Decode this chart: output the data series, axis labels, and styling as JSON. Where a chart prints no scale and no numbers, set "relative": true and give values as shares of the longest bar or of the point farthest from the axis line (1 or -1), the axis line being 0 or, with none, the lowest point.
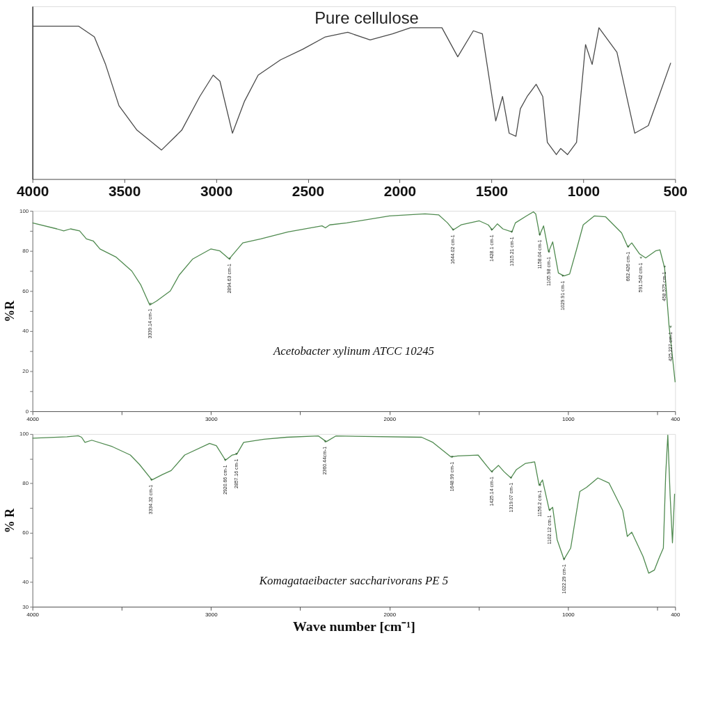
{
  "chart_data": [
    {
      "type": "line",
      "title": "Pure cellulose",
      "relative": true,
      "tick_labels": "x",
      "grid": false,
      "xlim": [
        4000,
        500
      ],
      "xticks": [
        4000,
        3500,
        3000,
        2500,
        2000,
        1500,
        1000,
        500
      ],
      "x": [
        4000,
        3748,
        3663,
        3602,
        3529,
        3431,
        3297,
        3187,
        3089,
        3016,
        2979,
        2911,
        2845,
        2771,
        2649,
        2527,
        2405,
        2283,
        2161,
        2039,
        1941,
        1770,
        1684,
        1599,
        1550,
        1477,
        1440,
        1404,
        1367,
        1343,
        1306,
        1257,
        1221,
        1196,
        1147,
        1123,
        1086,
        1037,
        988,
        952,
        915,
        817,
        720,
        646,
        598,
        524
      ],
      "series": [
        {
          "color": "#4a4a4a",
          "values": [
            1,
            1,
            0.93,
            0.75,
            0.48,
            0.32,
            0.19,
            0.32,
            0.54,
            0.68,
            0.64,
            0.3,
            0.51,
            0.68,
            0.78,
            0.85,
            0.93,
            0.96,
            0.91,
            0.95,
            0.99,
            0.99,
            0.8,
            0.97,
            0.95,
            0.38,
            0.54,
            0.3,
            0.28,
            0.46,
            0.54,
            0.62,
            0.54,
            0.24,
            0.16,
            0.2,
            0.16,
            0.24,
            0.88,
            0.75,
            0.99,
            0.83,
            0.3,
            0.35,
            0.51,
            0.76
          ]
        }
      ]
    },
    {
      "type": "line",
      "ylabel": "%R",
      "grid": false,
      "xlim": [
        4000,
        400
      ],
      "ylim": [
        0,
        100
      ],
      "xticks": [
        4000,
        {
          "value": 3500,
          "label": null
        },
        3000,
        {
          "value": 2500,
          "label": null
        },
        2000,
        {
          "value": 1500,
          "label": null
        },
        1000,
        {
          "value": 500,
          "label": null
        },
        400
      ],
      "yticks": [
        0,
        {
          "value": 10,
          "label": null
        },
        20,
        {
          "value": 30,
          "label": null
        },
        40,
        {
          "value": 50,
          "label": null
        },
        60,
        {
          "value": 70,
          "label": null
        },
        80,
        {
          "value": 90,
          "label": null
        },
        100
      ],
      "x": [
        4000,
        3863,
        3825,
        3787,
        3736,
        3698,
        3660,
        3622,
        3533,
        3444,
        3393,
        3343,
        3305,
        3228,
        3178,
        3102,
        3000,
        2950,
        2898,
        2822,
        2721,
        2569,
        2378,
        2359,
        2335,
        2239,
        2000,
        1801,
        1725,
        1675,
        1643,
        1599,
        1497,
        1447,
        1425,
        1396,
        1365,
        1314,
        1295,
        1232,
        1194,
        1181,
        1159,
        1137,
        1109,
        1086,
        1054,
        1023,
        991,
        953,
        915,
        852,
        789,
        700,
        665,
        643,
        599,
        565,
        510,
        485,
        459,
        434,
        422,
        400
      ],
      "series": [
        {
          "color": "#4f8a4f",
          "values": [
            94,
            91,
            90,
            91,
            90,
            86,
            85,
            81,
            77,
            70,
            63,
            53,
            55,
            60,
            68,
            76,
            81,
            80,
            76,
            84,
            86,
            89.5,
            92.5,
            91.5,
            93,
            94,
            97.5,
            98.5,
            98,
            94,
            90.5,
            93,
            95,
            93,
            90.5,
            93.5,
            91,
            89.5,
            94,
            97.5,
            99.5,
            98.5,
            88,
            92.5,
            79.5,
            84.5,
            69,
            67.5,
            68.5,
            80.5,
            93,
            97.5,
            97,
            89,
            82,
            84,
            78.5,
            76.5,
            80,
            80.5,
            71.5,
            42.5,
            33,
            14.5
          ]
        }
      ],
      "annotations": [
        "Acetobacter xylinum ATCC 10245",
        {
          "text": "3339.14 cm-1",
          "x": 3339.14,
          "y": 53.5
        },
        {
          "text": "2894.63 cm-1",
          "x": 2894.63,
          "y": 76
        },
        {
          "text": "1644.02 cm-1",
          "x": 1644.02,
          "y": 90.5
        },
        {
          "text": "1428.1 cm-1",
          "x": 1428.1,
          "y": 90.5
        },
        {
          "text": "1315.21 cm-1",
          "x": 1315.21,
          "y": 89.5
        },
        {
          "text": "1158.04 cm-1",
          "x": 1158.04,
          "y": 88
        },
        {
          "text": "1105.98 cm-1",
          "x": 1105.98,
          "y": 79.5
        },
        {
          "text": "1029.91 cm-1",
          "x": 1029.91,
          "y": 67.5
        },
        {
          "text": "662.426 cm-1",
          "x": 662.426,
          "y": 82
        },
        {
          "text": "591.542 cm-1",
          "x": 591.542,
          "y": 76.5
        },
        {
          "text": "458.575 cm-1",
          "x": 458.575,
          "y": 72
        },
        {
          "text": "425.227 cm-1",
          "x": 425.227,
          "y": 42
        }
      ]
    },
    {
      "type": "line",
      "ylabel": "% R",
      "xlabel": "Wave number [cm⁻¹]",
      "grid": false,
      "xlim": [
        4000,
        400
      ],
      "ylim": [
        30,
        100
      ],
      "xticks": [
        4000,
        {
          "value": 3500,
          "label": null
        },
        3000,
        {
          "value": 2500,
          "label": null
        },
        2000,
        {
          "value": 1500,
          "label": null
        },
        1000,
        {
          "value": 500,
          "label": null
        },
        400
      ],
      "yticks": [
        30,
        40,
        {
          "value": 50,
          "label": null
        },
        60,
        {
          "value": 70,
          "label": null
        },
        80,
        {
          "value": 90,
          "label": null
        },
        100
      ],
      "x": [
        4000,
        3807,
        3744,
        3725,
        3706,
        3668,
        3553,
        3452,
        3401,
        3331,
        3274,
        3223,
        3147,
        3008,
        2970,
        2919,
        2881,
        2855,
        2817,
        2703,
        2576,
        2398,
        2354,
        2301,
        1820,
        1757,
        1656,
        1618,
        1504,
        1453,
        1428,
        1390,
        1358,
        1320,
        1289,
        1238,
        1187,
        1162,
        1143,
        1105,
        1086,
        1061,
        1023,
        985,
        934,
        896,
        833,
        770,
        694,
        668,
        643,
        580,
        548,
        516,
        491,
        466,
        453,
        441,
        428,
        415,
        403
      ],
      "series": [
        {
          "color": "#4f8a4f",
          "values": [
            98.3,
            98.9,
            99.3,
            98.7,
            96.6,
            97.5,
            94.9,
            91.5,
            87.7,
            81.4,
            83.5,
            85.2,
            91.5,
            96.2,
            95.3,
            89.4,
            91.5,
            91.9,
            96.6,
            97.9,
            98.7,
            99.2,
            96.9,
            99.2,
            98.7,
            96.6,
            90.7,
            91.1,
            91.5,
            86.9,
            84.7,
            87.3,
            84.7,
            82.2,
            85.6,
            88.1,
            88.7,
            79.2,
            81.4,
            69.1,
            70.3,
            57.2,
            49.2,
            53.8,
            76.7,
            78.4,
            82.2,
            80.1,
            69.1,
            58.5,
            60.2,
            50.4,
            43.6,
            44.9,
            49.6,
            53.8,
            83.5,
            99.6,
            75,
            55.9,
            75.8
          ]
        }
      ],
      "annotations": [
        "Komagataeibacter saccharivorans PE 5",
        {
          "text": "3334.32 cm-1",
          "x": 3334.32,
          "y": 81.4
        },
        {
          "text": "2920.66 cm-1",
          "x": 2920.66,
          "y": 89.4
        },
        {
          "text": "2857.16 cm-1",
          "x": 2857.16,
          "y": 91.9
        },
        {
          "text": "2360.44cm-1",
          "x": 2360.44,
          "y": 96.9
        },
        {
          "text": "1648.99 cm-1",
          "x": 1648.99,
          "y": 90.7
        },
        {
          "text": "1425.14 cm-1",
          "x": 1425.14,
          "y": 84.7
        },
        {
          "text": "1319.07 cm-1",
          "x": 1319.07,
          "y": 82.2
        },
        {
          "text": "1156.2 cm-1",
          "x": 1156.2,
          "y": 79.2
        },
        {
          "text": "1102.12 cm-1",
          "x": 1102.12,
          "y": 69.1
        },
        {
          "text": "1022.29 cm-1",
          "x": 1022.29,
          "y": 49.2
        }
      ]
    }
  ]
}
